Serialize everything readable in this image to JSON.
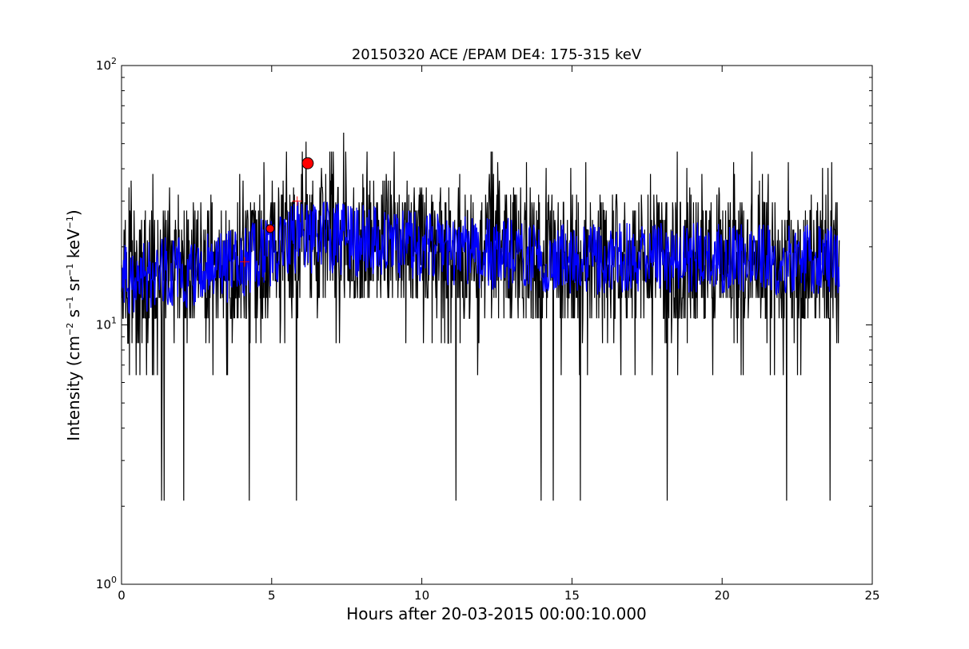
{
  "chart_data": {
    "type": "line",
    "title": "20150320 ACE /EPAM DE4: 175-315 keV",
    "xlabel": "Hours after 20-03-2015 00:00:10.000",
    "ylabel": {
      "base": "Intensity (cm",
      "exp1": "−2",
      "mid1": " s",
      "exp2": "−1",
      "mid2": " sr",
      "exp3": "−1",
      "mid3": " keV",
      "exp4": "−1",
      "end": ")"
    },
    "xlim": [
      0,
      25
    ],
    "ylim": [
      1,
      100
    ],
    "yscale": "log",
    "grid": false,
    "x_ticks": [
      0,
      5,
      10,
      15,
      20,
      25
    ],
    "x_tick_labels": [
      "0",
      "5",
      "10",
      "15",
      "20",
      "25"
    ],
    "y_ticks": [
      1,
      10,
      100
    ],
    "y_tick_labels": [
      {
        "base": "10",
        "exp": "0"
      },
      {
        "base": "10",
        "exp": "1"
      },
      {
        "base": "10",
        "exp": "2"
      }
    ],
    "series": [
      {
        "kind": "raw",
        "color": "#000000",
        "x_range": [
          0,
          23.9
        ],
        "levels": [
          2.1,
          4.2,
          6.4,
          8.5,
          10.6,
          12.7,
          14.8,
          17.0,
          19.1,
          21.2,
          23.3,
          25.4,
          27.6,
          29.7,
          31.8,
          33.9,
          36.0,
          38.2,
          40.3,
          42.4,
          46.6,
          55.1
        ],
        "baseline_by_hour": [
          [
            0,
            16
          ],
          [
            4,
            17
          ],
          [
            6,
            22
          ],
          [
            8,
            21
          ],
          [
            12,
            19
          ],
          [
            16,
            18
          ],
          [
            20,
            18
          ],
          [
            24,
            18
          ]
        ],
        "deep_dips_hours": [
          1.33,
          1.42,
          2.07,
          4.25,
          5.83,
          11.13,
          13.97,
          14.38,
          15.28,
          18.17,
          22.15,
          23.6
        ],
        "notable_peaks": [
          [
            7.4,
            55.1
          ],
          [
            6.15,
            50.9
          ],
          [
            7.05,
            46.6
          ],
          [
            18.5,
            46.6
          ],
          [
            21.0,
            46.6
          ],
          [
            22.2,
            42.4
          ],
          [
            23.35,
            40.3
          ]
        ]
      },
      {
        "kind": "smoothed",
        "color": "#0000ff",
        "x_range": [
          0,
          23.9
        ],
        "baseline_by_hour": [
          [
            0,
            15
          ],
          [
            4,
            17
          ],
          [
            6,
            22
          ],
          [
            8,
            21
          ],
          [
            12,
            19
          ],
          [
            16,
            18
          ],
          [
            20,
            18
          ],
          [
            24,
            18
          ]
        ]
      }
    ],
    "markers": [
      {
        "x": 4.95,
        "y": 23.5,
        "shape": "circle",
        "color": "#ff0000",
        "size": "small"
      },
      {
        "x": 6.2,
        "y": 42.0,
        "shape": "circle",
        "color": "#ff0000",
        "size": "large"
      },
      {
        "x": 4.1,
        "y": 17.5,
        "shape": "plus",
        "color": "#ff0000"
      },
      {
        "x": 5.85,
        "y": 30.0,
        "shape": "plus",
        "color": "#ff0000"
      }
    ]
  }
}
